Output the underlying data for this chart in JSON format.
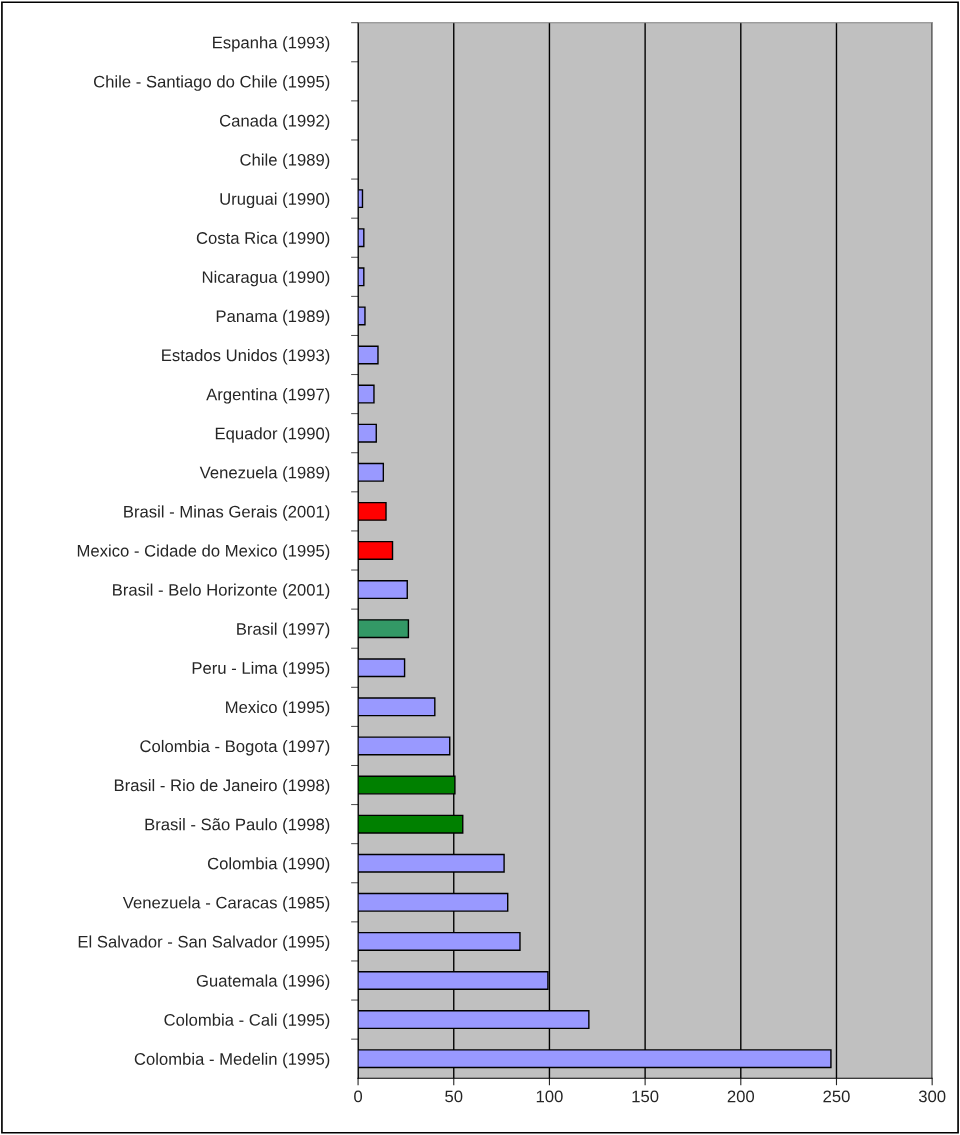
{
  "chart_data": {
    "type": "bar",
    "orientation": "horizontal",
    "categories": [
      "Espanha (1993)",
      "Chile - Santiago do Chile (1995)",
      "Canada (1992)",
      "Chile (1989)",
      "Uruguai (1990)",
      "Costa Rica (1990)",
      "Nicaragua (1990)",
      "Panama (1989)",
      "Estados Unidos (1993)",
      "Argentina (1997)",
      "Equador (1990)",
      "Venezuela (1989)",
      "Brasil - Minas Gerais (2001)",
      "Mexico - Cidade do Mexico (1995)",
      "Brasil - Belo Horizonte (2001)",
      "Brasil (1997)",
      "Peru - Lima (1995)",
      "Mexico (1995)",
      "Colombia - Bogota (1997)",
      "Brasil - Rio de Janeiro (1998)",
      "Brasil - São Paulo (1998)",
      "Colombia (1990)",
      "Venezuela - Caracas (1985)",
      "El Salvador - San Salvador (1995)",
      "Guatemala (1996)",
      "Colombia - Cali (1995)",
      "Colombia - Medelin (1995)"
    ],
    "values": [
      0,
      0,
      0,
      0,
      2.3,
      3,
      3,
      3.6,
      10.4,
      8.3,
      9.5,
      13.2,
      14.6,
      18,
      25.7,
      26.3,
      24.3,
      40.1,
      47.9,
      50.6,
      54.7,
      76.3,
      78.2,
      84.6,
      99.2,
      120.6,
      247.1
    ],
    "colors": [
      "#9999ff",
      "#9999ff",
      "#9999ff",
      "#9999ff",
      "#9999ff",
      "#9999ff",
      "#9999ff",
      "#9999ff",
      "#9999ff",
      "#9999ff",
      "#9999ff",
      "#9999ff",
      "#ff0000",
      "#ff0000",
      "#9999ff",
      "#339966",
      "#9999ff",
      "#9999ff",
      "#9999ff",
      "#008000",
      "#008000",
      "#9999ff",
      "#9999ff",
      "#9999ff",
      "#9999ff",
      "#9999ff",
      "#9999ff"
    ],
    "xlim": [
      0,
      300
    ],
    "xticks": [
      0,
      50,
      100,
      150,
      200,
      250,
      300
    ],
    "grid": "x"
  }
}
